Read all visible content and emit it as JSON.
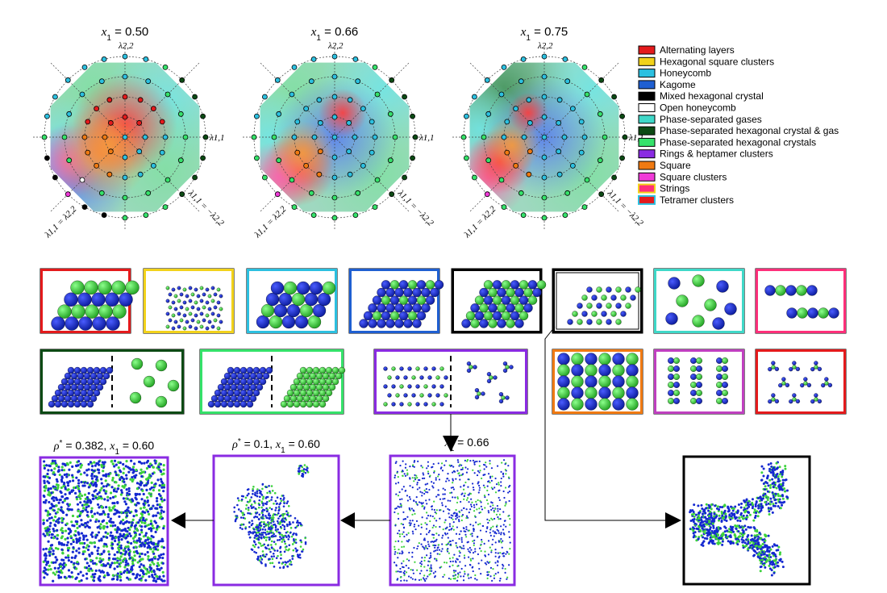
{
  "top_row": {
    "diagrams": [
      {
        "label_var": "x",
        "label_sub": "1",
        "label_value": " = 0.50",
        "variant": "a"
      },
      {
        "label_var": "x",
        "label_sub": "1",
        "label_value": " = 0.66",
        "variant": "b"
      },
      {
        "label_var": "x",
        "label_sub": "1",
        "label_value": " = 0.75",
        "variant": "c"
      }
    ],
    "axis_labels": {
      "vertical": "λ2,2",
      "horizontal": "λ1,1",
      "diag_left": "λ1,1 = λ2,2",
      "diag_right": "λ1,1 = −λ2,2"
    }
  },
  "legend": {
    "items": [
      {
        "label": "Alternating layers",
        "fill": "#e41a1c",
        "stroke": "#000000"
      },
      {
        "label": "Hexagonal square clusters",
        "fill": "#f2d21b",
        "stroke": "#000000"
      },
      {
        "label": "Honeycomb",
        "fill": "#2cc0e0",
        "stroke": "#000000"
      },
      {
        "label": "Kagome",
        "fill": "#1f5fd1",
        "stroke": "#000000"
      },
      {
        "label": "Mixed hexagonal crystal",
        "fill": "#000000",
        "stroke": "#000000"
      },
      {
        "label": "Open honeycomb",
        "fill": "#ffffff",
        "stroke": "#000000"
      },
      {
        "label": "Phase-separated gases",
        "fill": "#3fd8c8",
        "stroke": "#000000"
      },
      {
        "label": "Phase-separated hexagonal crystal & gas",
        "fill": "#0c4a14",
        "stroke": "#000000"
      },
      {
        "label": "Phase-separated hexagonal crystals",
        "fill": "#35e26a",
        "stroke": "#000000"
      },
      {
        "label": "Rings & heptamer clusters",
        "fill": "#8a2be2",
        "stroke": "#000000"
      },
      {
        "label": "Square",
        "fill": "#f07a12",
        "stroke": "#000000"
      },
      {
        "label": "Square clusters",
        "fill": "#f03ad8",
        "stroke": "#000000"
      },
      {
        "label": "Strings",
        "fill": "#ff2f7a",
        "stroke": "#f2d21b"
      },
      {
        "label": "Tetramer clusters",
        "fill": "#e41a1c",
        "stroke": "#2cc0e0"
      }
    ]
  },
  "phase_panels": {
    "row1": [
      {
        "phase": "alternating-layers",
        "border": "#e41a1c"
      },
      {
        "phase": "hexagonal-square-clusters",
        "border": "#f2d21b"
      },
      {
        "phase": "honeycomb",
        "border": "#2cc0e0"
      },
      {
        "phase": "kagome",
        "border": "#1f5fd1"
      },
      {
        "phase": "mixed-hexagonal-crystal",
        "border": "#000000"
      },
      {
        "phase": "open-honeycomb",
        "border": "#000000"
      },
      {
        "phase": "phase-separated-gases",
        "border": "#3fd8c8"
      },
      {
        "phase": "strings",
        "border": "#ff2f7a"
      }
    ],
    "row2": [
      {
        "phase": "phase-separated-hexagonal-crystal-and-gas",
        "border": "#0c4a14"
      },
      {
        "phase": "phase-separated-hexagonal-crystals",
        "border": "#35e26a"
      },
      {
        "phase": "rings-and-heptamer-clusters",
        "border": "#8a2be2"
      },
      {
        "phase": "square",
        "border": "#f07a12"
      },
      {
        "phase": "square-clusters",
        "border": "#c040c0"
      },
      {
        "phase": "tetramer-clusters",
        "border": "#e41a1c"
      }
    ]
  },
  "snapshots": [
    {
      "caption_pre": "ρ",
      "caption_sup": "*",
      "caption_post": " = 0.382, x",
      "caption_sub": "1",
      "caption_end": " = 0.60",
      "border": "#8a2be2"
    },
    {
      "caption_pre": "ρ",
      "caption_sup": "*",
      "caption_post": " = 0.1, x",
      "caption_sub": "1",
      "caption_end": " = 0.60",
      "border": "#8a2be2"
    },
    {
      "caption_pre": "",
      "caption_sup": "",
      "caption_post": "x",
      "caption_sub": "1",
      "caption_end": " = 0.66",
      "border": "#8a2be2"
    },
    {
      "caption_pre": "",
      "caption_sup": "",
      "caption_post": "",
      "caption_sub": "",
      "caption_end": "",
      "border": "#000000"
    }
  ],
  "colors": {
    "particle_blue": "#1428d0",
    "particle_green": "#3cd23c",
    "dotted_line": "#555555"
  }
}
